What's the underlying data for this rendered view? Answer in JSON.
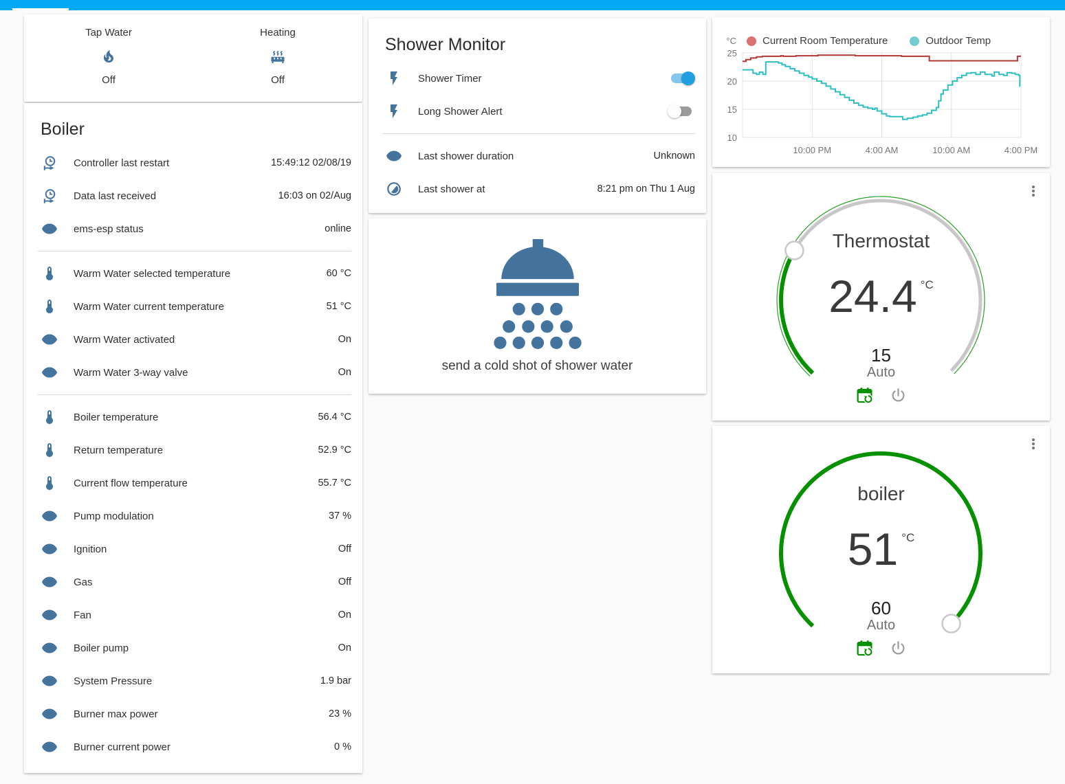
{
  "appbar": {
    "color": "#03a9f4"
  },
  "status_card": {
    "items": [
      {
        "label": "Tap Water",
        "icon": "fire-icon",
        "state": "Off"
      },
      {
        "label": "Heating",
        "icon": "radiator-icon",
        "state": "Off"
      }
    ]
  },
  "boiler": {
    "title": "Boiler",
    "rows": [
      {
        "icon": "clock-start-icon",
        "label": "Controller last restart",
        "value": "15:49:12 02/08/19"
      },
      {
        "icon": "clock-start-icon",
        "label": "Data last received",
        "value": "16:03 on 02/Aug"
      },
      {
        "icon": "eye-icon",
        "label": "ems-esp status",
        "value": "online"
      },
      {
        "icon": "thermometer-icon",
        "label": "Warm Water selected temperature",
        "value": "60 °C"
      },
      {
        "icon": "thermometer-icon",
        "label": "Warm Water current temperature",
        "value": "51 °C"
      },
      {
        "icon": "eye-icon",
        "label": "Warm Water activated",
        "value": "On"
      },
      {
        "icon": "eye-icon",
        "label": "Warm Water 3-way valve",
        "value": "On"
      },
      {
        "icon": "thermometer-icon",
        "label": "Boiler temperature",
        "value": "56.4 °C"
      },
      {
        "icon": "thermometer-icon",
        "label": "Return temperature",
        "value": "52.9 °C"
      },
      {
        "icon": "thermometer-icon",
        "label": "Current flow temperature",
        "value": "55.7 °C"
      },
      {
        "icon": "eye-icon",
        "label": "Pump modulation",
        "value": "37 %"
      },
      {
        "icon": "eye-icon",
        "label": "Ignition",
        "value": "Off"
      },
      {
        "icon": "eye-icon",
        "label": "Gas",
        "value": "Off"
      },
      {
        "icon": "eye-icon",
        "label": "Fan",
        "value": "On"
      },
      {
        "icon": "eye-icon",
        "label": "Boiler pump",
        "value": "On"
      },
      {
        "icon": "eye-icon",
        "label": "System Pressure",
        "value": "1.9 bar"
      },
      {
        "icon": "eye-icon",
        "label": "Burner max power",
        "value": "23 %"
      },
      {
        "icon": "eye-icon",
        "label": "Burner current power",
        "value": "0 %"
      }
    ]
  },
  "shower_monitor": {
    "title": "Shower Monitor",
    "toggles": [
      {
        "icon": "flash-icon",
        "icon_color": "#fdd835",
        "label": "Shower Timer",
        "state": "on"
      },
      {
        "icon": "flash-icon",
        "icon_color": "#44739e",
        "label": "Long Shower Alert",
        "state": "off"
      }
    ],
    "rows": [
      {
        "icon": "eye-icon",
        "label": "Last shower duration",
        "value": "Unknown"
      },
      {
        "icon": "moon-icon",
        "label": "Last shower at",
        "value": "8:21 pm on Thu 1 Aug"
      }
    ]
  },
  "shower_action": {
    "label": "send a cold shot of shower water"
  },
  "chart_data": {
    "type": "line",
    "step": true,
    "unit": "°C",
    "grid": true,
    "legend_position": "top",
    "x_range_hours": [
      0,
      24
    ],
    "x_ticks": [
      {
        "h": 6,
        "label": "10:00 PM"
      },
      {
        "h": 12,
        "label": "4:00 AM"
      },
      {
        "h": 18,
        "label": "10:00 AM"
      },
      {
        "h": 24,
        "label": "4:00 PM"
      }
    ],
    "y_ticks": [
      10,
      15,
      20,
      25
    ],
    "y_range": [
      10,
      25
    ],
    "legend": [
      {
        "label": "Current Room Temperature",
        "dot": "#de7170"
      },
      {
        "label": "Outdoor Temp",
        "dot": "#72ccd2"
      }
    ],
    "series": [
      {
        "name": "Current Room Temperature",
        "color": "#b23835",
        "points": [
          [
            0,
            23.5
          ],
          [
            0.3,
            23.8
          ],
          [
            0.7,
            24.1
          ],
          [
            1.2,
            24.3
          ],
          [
            1.7,
            24.4
          ],
          [
            3.1,
            24.4
          ],
          [
            3.3,
            24.5
          ],
          [
            3.5,
            24.4
          ],
          [
            4.4,
            24.4
          ],
          [
            4.6,
            24.5
          ],
          [
            6.3,
            24.5
          ],
          [
            6.5,
            24.6
          ],
          [
            9.5,
            24.6
          ],
          [
            9.7,
            24.5
          ],
          [
            13.5,
            24.5
          ],
          [
            13.7,
            24.4
          ],
          [
            15.8,
            24.4
          ],
          [
            16.1,
            23.6
          ],
          [
            23.5,
            23.6
          ],
          [
            23.7,
            24.4
          ],
          [
            24,
            24.4
          ]
        ]
      },
      {
        "name": "Outdoor Temp",
        "color": "#2fbfc2",
        "points": [
          [
            0,
            22.0
          ],
          [
            0.8,
            22.0
          ],
          [
            0.9,
            21.4
          ],
          [
            1.2,
            21.2
          ],
          [
            1.45,
            21.6
          ],
          [
            1.75,
            21.2
          ],
          [
            2.0,
            23.4
          ],
          [
            2.9,
            23.4
          ],
          [
            3.1,
            23.2
          ],
          [
            3.4,
            22.9
          ],
          [
            3.7,
            22.6
          ],
          [
            4.1,
            22.2
          ],
          [
            4.5,
            21.8
          ],
          [
            4.9,
            21.4
          ],
          [
            5.3,
            21.0
          ],
          [
            5.7,
            20.7
          ],
          [
            6.0,
            20.4
          ],
          [
            6.4,
            20.0
          ],
          [
            6.8,
            19.6
          ],
          [
            7.2,
            19.1
          ],
          [
            7.6,
            18.6
          ],
          [
            8.0,
            18.1
          ],
          [
            8.4,
            17.6
          ],
          [
            8.8,
            17.1
          ],
          [
            9.2,
            16.6
          ],
          [
            9.6,
            16.1
          ],
          [
            10.0,
            15.7
          ],
          [
            10.4,
            15.4
          ],
          [
            10.8,
            15.2
          ],
          [
            11.2,
            15.0
          ],
          [
            11.4,
            15.2
          ],
          [
            11.6,
            14.7
          ],
          [
            12.0,
            14.2
          ],
          [
            12.4,
            13.8
          ],
          [
            12.7,
            13.7
          ],
          [
            13.4,
            13.7
          ],
          [
            13.8,
            13.2
          ],
          [
            14.2,
            13.4
          ],
          [
            14.7,
            13.6
          ],
          [
            15.1,
            13.8
          ],
          [
            15.5,
            14.0
          ],
          [
            15.9,
            14.3
          ],
          [
            16.3,
            14.8
          ],
          [
            16.7,
            15.3
          ],
          [
            16.9,
            16.5
          ],
          [
            17.1,
            17.7
          ],
          [
            17.3,
            18.4
          ],
          [
            17.7,
            19.3
          ],
          [
            18.1,
            20.0
          ],
          [
            18.5,
            20.6
          ],
          [
            18.9,
            21.0
          ],
          [
            19.3,
            21.4
          ],
          [
            19.7,
            21.5
          ],
          [
            20.1,
            21.2
          ],
          [
            20.5,
            21.6
          ],
          [
            20.9,
            21.2
          ],
          [
            21.5,
            20.9
          ],
          [
            21.7,
            21.6
          ],
          [
            22.1,
            21.2
          ],
          [
            22.5,
            21.0
          ],
          [
            22.8,
            21.5
          ],
          [
            23.2,
            21.4
          ],
          [
            23.5,
            21.2
          ],
          [
            23.8,
            21.0
          ],
          [
            23.9,
            19.0
          ]
        ]
      }
    ]
  },
  "thermostat_gauge": {
    "title": "Thermostat",
    "value": "24.4",
    "unit": "°C",
    "setpoint": "15",
    "mode": "Auto",
    "arc_color": "#059000"
  },
  "boiler_gauge": {
    "title": "boiler",
    "value": "51",
    "unit": "°C",
    "setpoint": "60",
    "mode": "Auto",
    "arc_color": "#059000"
  }
}
